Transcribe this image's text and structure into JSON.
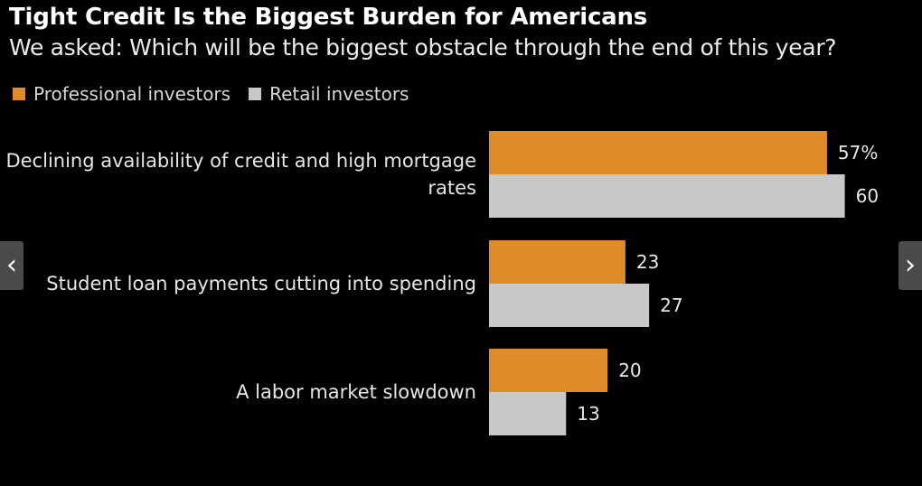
{
  "header": {
    "title": "Tight Credit Is the Biggest Burden for Americans",
    "subtitle": "We asked: Which will be the biggest obstacle through the end of this year?"
  },
  "legend": {
    "professional": "Professional investors",
    "retail": "Retail investors"
  },
  "colors": {
    "professional": "#E08B2A",
    "retail": "#C8C8C8",
    "background": "#000000"
  },
  "nav": {
    "prev_icon": "chevron-left-icon",
    "next_icon": "chevron-right-icon"
  },
  "chart_data": {
    "type": "bar",
    "orientation": "horizontal",
    "title": "Tight Credit Is the Biggest Burden for Americans",
    "subtitle": "We asked: Which will be the biggest obstacle through the end of this year?",
    "unit": "%",
    "categories": [
      [
        "Declining availability of credit and high mortgage",
        "rates"
      ],
      [
        "Student loan payments cutting into spending"
      ],
      [
        "A labor market slowdown"
      ]
    ],
    "series": [
      {
        "name": "Professional investors",
        "values": [
          57,
          23,
          20
        ],
        "labels": [
          "57%",
          "23",
          "20"
        ]
      },
      {
        "name": "Retail investors",
        "values": [
          60,
          27,
          13
        ],
        "labels": [
          "60",
          "27",
          "13"
        ]
      }
    ],
    "xlim": [
      0,
      60
    ],
    "grid": false,
    "legend_position": "top-left"
  }
}
